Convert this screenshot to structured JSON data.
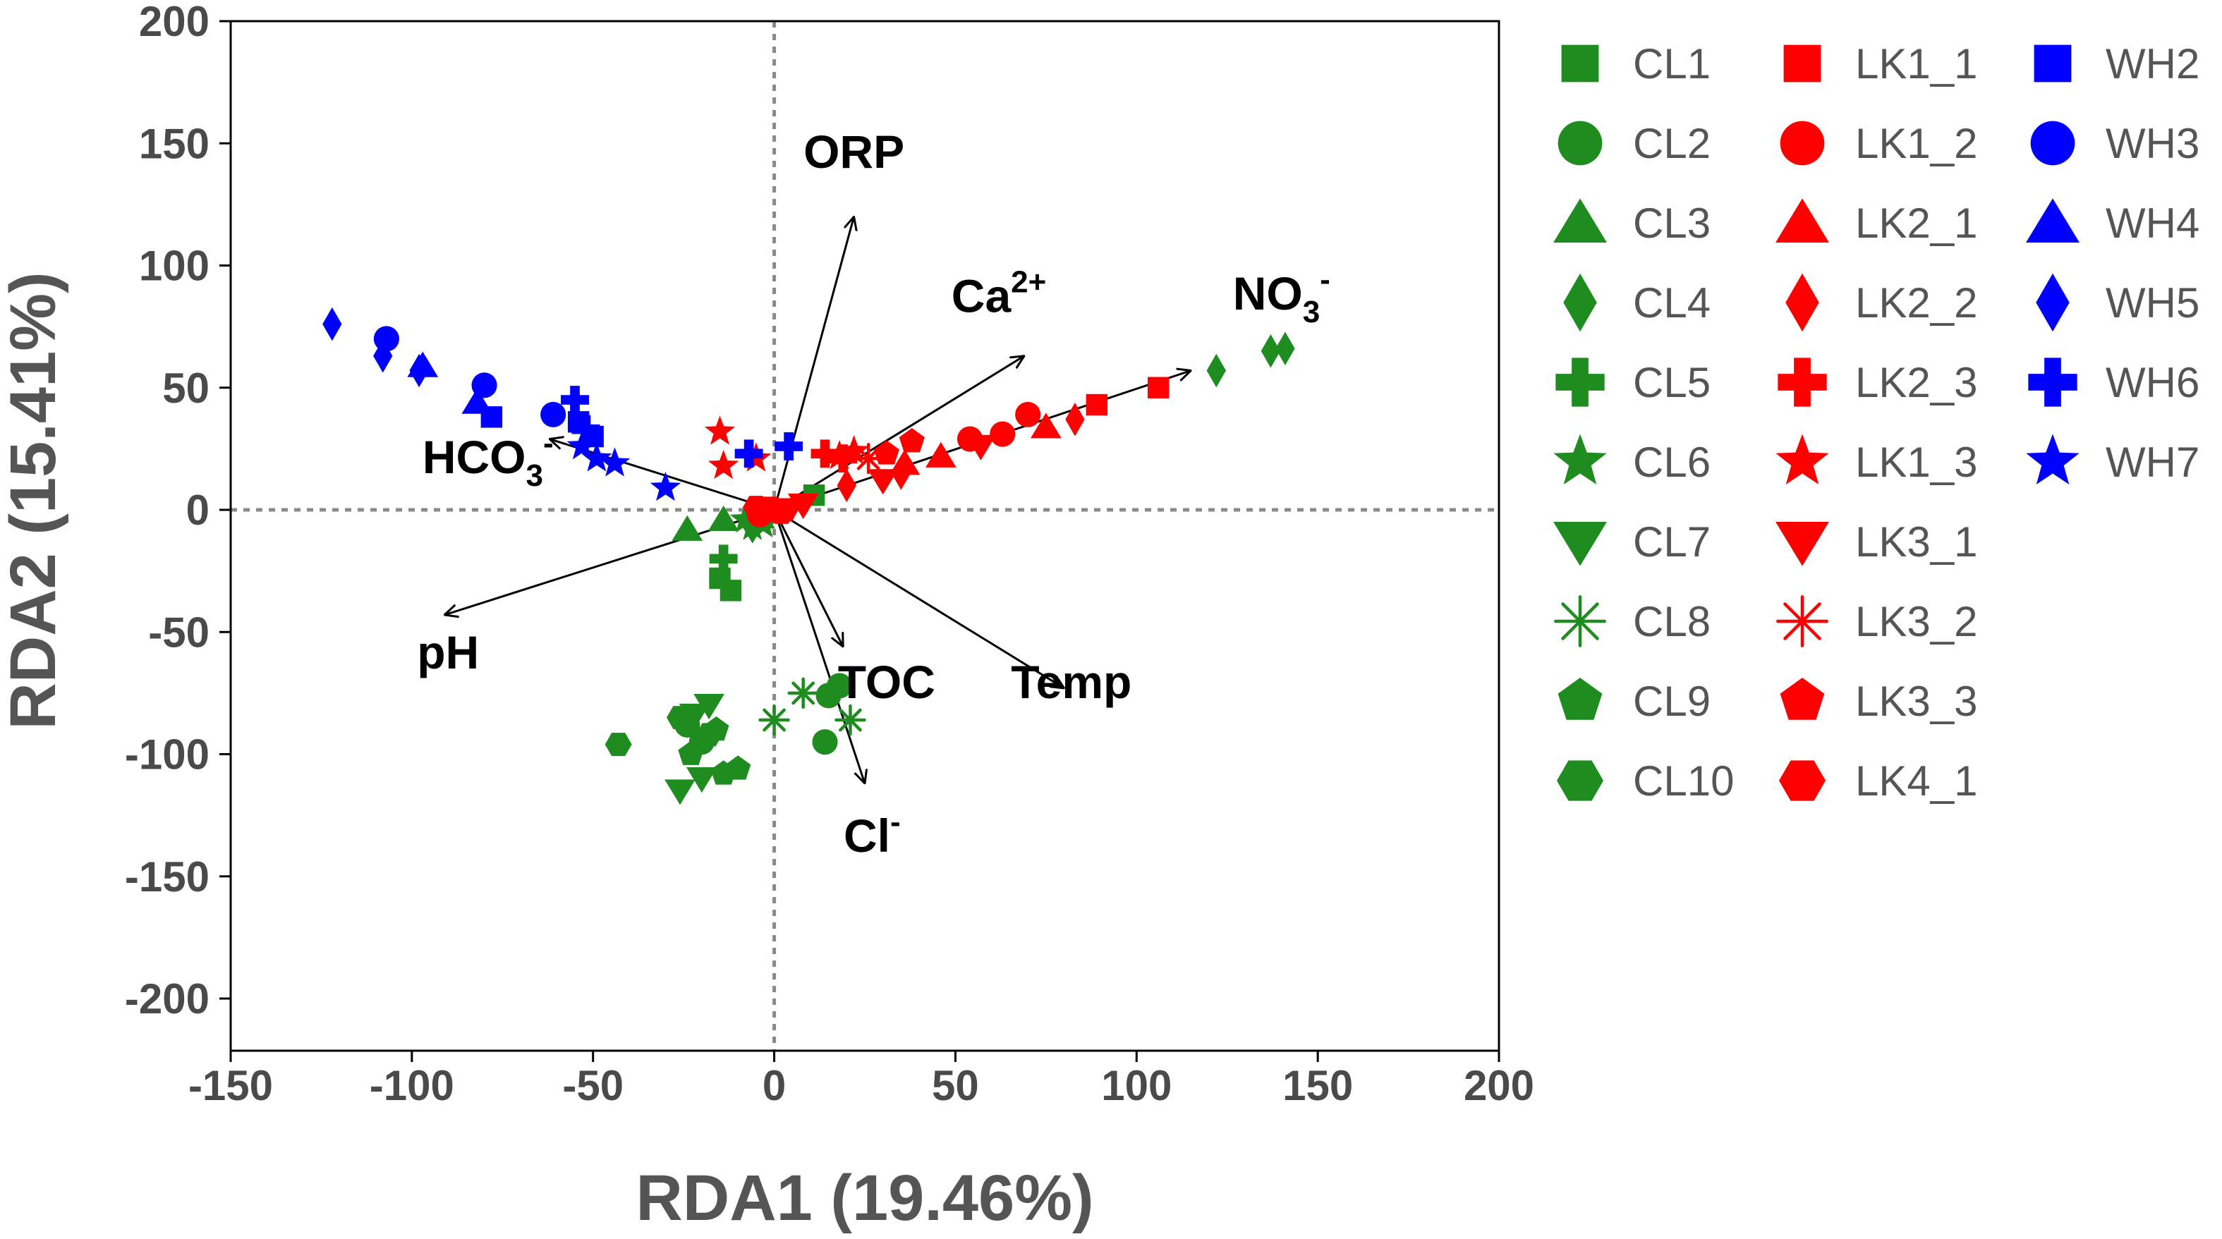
{
  "chart_data": {
    "type": "scatter",
    "title": "",
    "xlabel": "RDA1 (19.46%)",
    "ylabel": "RDA2 (15.41%)",
    "xlim": [
      -150,
      200
    ],
    "ylim": [
      -220,
      200
    ],
    "xticks": [
      -150,
      -100,
      -50,
      0,
      50,
      100,
      150,
      200
    ],
    "yticks": [
      -200,
      -150,
      -100,
      -50,
      0,
      50,
      100,
      150,
      200
    ],
    "xtick_labels": [
      "-150",
      "-100",
      "-50",
      "0",
      "50",
      "100",
      "150",
      "200"
    ],
    "ytick_labels": [
      "-200",
      "-150",
      "-100",
      "-50",
      "0",
      "50",
      "100",
      "150",
      "200"
    ],
    "reference_lines": {
      "x": 0,
      "y": 0,
      "style": "dotted"
    },
    "colors": {
      "CL": "#1e8c1e",
      "LK": "#ff0000",
      "WH": "#0000ff",
      "vector": "#000000"
    },
    "vectors": [
      {
        "name": "ORP",
        "end": [
          22,
          120
        ],
        "label_at": [
          22,
          140
        ],
        "label": "ORP",
        "sup": "",
        "sub": ""
      },
      {
        "name": "Ca",
        "end": [
          69,
          63
        ],
        "label_at": [
          62,
          81
        ],
        "label": "Ca",
        "sup": "2+",
        "sub": ""
      },
      {
        "name": "NO3",
        "end": [
          115,
          57
        ],
        "label_at": [
          140,
          82
        ],
        "label": "NO",
        "sup": "-",
        "sub": "3"
      },
      {
        "name": "HCO3",
        "end": [
          -62,
          29
        ],
        "label_at": [
          -79,
          15
        ],
        "label": "HCO",
        "sup": "-",
        "sub": "3"
      },
      {
        "name": "pH",
        "end": [
          -91,
          -43
        ],
        "label_at": [
          -90,
          -65
        ],
        "label": "pH",
        "sup": "",
        "sub": ""
      },
      {
        "name": "TOC",
        "end": [
          19,
          -56
        ],
        "label_at": [
          31,
          -77
        ],
        "label": "TOC",
        "sup": "",
        "sub": ""
      },
      {
        "name": "Temp",
        "end": [
          80,
          -73
        ],
        "label_at": [
          82,
          -77
        ],
        "label": "Temp",
        "sup": "",
        "sub": ""
      },
      {
        "name": "Cl",
        "end": [
          25,
          -112
        ],
        "label_at": [
          27,
          -140
        ],
        "label": "Cl",
        "sup": "-",
        "sub": ""
      }
    ],
    "legend": [
      {
        "label": "CL1",
        "group": "CL",
        "shape": "square"
      },
      {
        "label": "CL2",
        "group": "CL",
        "shape": "circle"
      },
      {
        "label": "CL3",
        "group": "CL",
        "shape": "triangle"
      },
      {
        "label": "CL4",
        "group": "CL",
        "shape": "diamond"
      },
      {
        "label": "CL5",
        "group": "CL",
        "shape": "cross"
      },
      {
        "label": "CL6",
        "group": "CL",
        "shape": "star"
      },
      {
        "label": "CL7",
        "group": "CL",
        "shape": "tridown"
      },
      {
        "label": "CL8",
        "group": "CL",
        "shape": "asterisk"
      },
      {
        "label": "CL9",
        "group": "CL",
        "shape": "pentagon"
      },
      {
        "label": "CL10",
        "group": "CL",
        "shape": "hexagon"
      },
      {
        "label": "LK1_1",
        "group": "LK",
        "shape": "square"
      },
      {
        "label": "LK1_2",
        "group": "LK",
        "shape": "circle"
      },
      {
        "label": "LK2_1",
        "group": "LK",
        "shape": "triangle"
      },
      {
        "label": "LK2_2",
        "group": "LK",
        "shape": "diamond"
      },
      {
        "label": "LK2_3",
        "group": "LK",
        "shape": "cross"
      },
      {
        "label": "LK1_3",
        "group": "LK",
        "shape": "star"
      },
      {
        "label": "LK3_1",
        "group": "LK",
        "shape": "tridown"
      },
      {
        "label": "LK3_2",
        "group": "LK",
        "shape": "asterisk"
      },
      {
        "label": "LK3_3",
        "group": "LK",
        "shape": "pentagon"
      },
      {
        "label": "LK4_1",
        "group": "LK",
        "shape": "hexagon"
      },
      {
        "label": "WH2",
        "group": "WH",
        "shape": "square"
      },
      {
        "label": "WH3",
        "group": "WH",
        "shape": "circle"
      },
      {
        "label": "WH4",
        "group": "WH",
        "shape": "triangle"
      },
      {
        "label": "WH5",
        "group": "WH",
        "shape": "diamond"
      },
      {
        "label": "WH6",
        "group": "WH",
        "shape": "cross"
      },
      {
        "label": "WH7",
        "group": "WH",
        "shape": "star"
      }
    ],
    "series": [
      {
        "name": "CL1",
        "group": "CL",
        "shape": "square",
        "points": [
          [
            11,
            6
          ],
          [
            -12,
            -33
          ],
          [
            -15,
            -28
          ]
        ]
      },
      {
        "name": "CL2",
        "group": "CL",
        "shape": "circle",
        "points": [
          [
            18,
            -72
          ],
          [
            15,
            -76
          ],
          [
            14,
            -95
          ],
          [
            -20,
            -95
          ],
          [
            -24,
            -88
          ]
        ]
      },
      {
        "name": "CL3",
        "group": "CL",
        "shape": "triangle",
        "points": [
          [
            -24,
            -8
          ],
          [
            -14,
            -4
          ],
          [
            -4,
            -3
          ]
        ]
      },
      {
        "name": "CL4",
        "group": "CL",
        "shape": "diamond",
        "points": [
          [
            122,
            57
          ],
          [
            137,
            65
          ],
          [
            141,
            66
          ]
        ]
      },
      {
        "name": "CL5",
        "group": "CL",
        "shape": "cross",
        "points": [
          [
            -14,
            -20
          ]
        ]
      },
      {
        "name": "CL6",
        "group": "CL",
        "shape": "star",
        "points": [
          [
            -6,
            -7
          ],
          [
            -3,
            -6
          ],
          [
            -8,
            -4
          ]
        ]
      },
      {
        "name": "CL7",
        "group": "CL",
        "shape": "tridown",
        "points": [
          [
            -26,
            -115
          ],
          [
            -18,
            -80
          ],
          [
            -22,
            -84
          ],
          [
            -20,
            -110
          ],
          [
            -6,
            -8
          ]
        ]
      },
      {
        "name": "CL8",
        "group": "CL",
        "shape": "asterisk",
        "points": [
          [
            0,
            -86
          ],
          [
            8,
            -75
          ],
          [
            21,
            -86
          ]
        ]
      },
      {
        "name": "CL9",
        "group": "CL",
        "shape": "pentagon",
        "points": [
          [
            -14,
            -108
          ],
          [
            -10,
            -106
          ],
          [
            -16,
            -90
          ],
          [
            -23,
            -100
          ]
        ]
      },
      {
        "name": "CL10",
        "group": "CL",
        "shape": "hexagon",
        "points": [
          [
            -43,
            -96
          ],
          [
            -26,
            -85
          ],
          [
            -18,
            -92
          ]
        ]
      },
      {
        "name": "LK1_1",
        "group": "LK",
        "shape": "square",
        "points": [
          [
            106,
            50
          ],
          [
            89,
            43
          ],
          [
            -2,
            1
          ]
        ]
      },
      {
        "name": "LK1_2",
        "group": "LK",
        "shape": "circle",
        "points": [
          [
            70,
            39
          ],
          [
            63,
            31
          ],
          [
            54,
            29
          ],
          [
            0,
            0
          ],
          [
            -4,
            -2
          ]
        ]
      },
      {
        "name": "LK2_1",
        "group": "LK",
        "shape": "triangle",
        "points": [
          [
            75,
            34
          ],
          [
            46,
            22
          ],
          [
            36,
            19
          ]
        ]
      },
      {
        "name": "LK2_2",
        "group": "LK",
        "shape": "diamond",
        "points": [
          [
            83,
            37
          ],
          [
            20,
            10
          ],
          [
            35,
            15
          ]
        ]
      },
      {
        "name": "LK2_3",
        "group": "LK",
        "shape": "cross",
        "points": [
          [
            14,
            23
          ],
          [
            19,
            21
          ]
        ]
      },
      {
        "name": "LK1_3",
        "group": "LK",
        "shape": "star",
        "points": [
          [
            -15,
            32
          ],
          [
            -14,
            18
          ],
          [
            -5,
            21
          ],
          [
            22,
            24
          ],
          [
            18,
            22
          ]
        ]
      },
      {
        "name": "LK3_1",
        "group": "LK",
        "shape": "tridown",
        "points": [
          [
            57,
            26
          ],
          [
            30,
            12
          ],
          [
            8,
            2
          ]
        ]
      },
      {
        "name": "LK3_2",
        "group": "LK",
        "shape": "asterisk",
        "points": [
          [
            26,
            21
          ]
        ]
      },
      {
        "name": "LK3_3",
        "group": "LK",
        "shape": "pentagon",
        "points": [
          [
            38,
            28
          ],
          [
            31,
            23
          ]
        ]
      },
      {
        "name": "LK4_1",
        "group": "LK",
        "shape": "hexagon",
        "points": [
          [
            -5,
            1
          ],
          [
            3,
            0
          ],
          [
            2,
            -1
          ]
        ]
      },
      {
        "name": "WH2",
        "group": "WH",
        "shape": "square",
        "points": [
          [
            -78,
            38
          ],
          [
            -50,
            30
          ],
          [
            -54,
            36
          ]
        ]
      },
      {
        "name": "WH3",
        "group": "WH",
        "shape": "circle",
        "points": [
          [
            -107,
            70
          ],
          [
            -80,
            51
          ],
          [
            -61,
            39
          ]
        ]
      },
      {
        "name": "WH4",
        "group": "WH",
        "shape": "triangle",
        "points": [
          [
            -97,
            59
          ],
          [
            -82,
            44
          ]
        ]
      },
      {
        "name": "WH5",
        "group": "WH",
        "shape": "diamond",
        "points": [
          [
            -122,
            76
          ],
          [
            -108,
            63
          ],
          [
            -98,
            57
          ]
        ]
      },
      {
        "name": "WH6",
        "group": "WH",
        "shape": "cross",
        "points": [
          [
            -55,
            45
          ],
          [
            -52,
            33
          ],
          [
            -7,
            23
          ],
          [
            4,
            26
          ]
        ]
      },
      {
        "name": "WH7",
        "group": "WH",
        "shape": "star",
        "points": [
          [
            -30,
            9
          ],
          [
            -44,
            19
          ],
          [
            -49,
            21
          ],
          [
            -53,
            26
          ]
        ]
      }
    ]
  }
}
